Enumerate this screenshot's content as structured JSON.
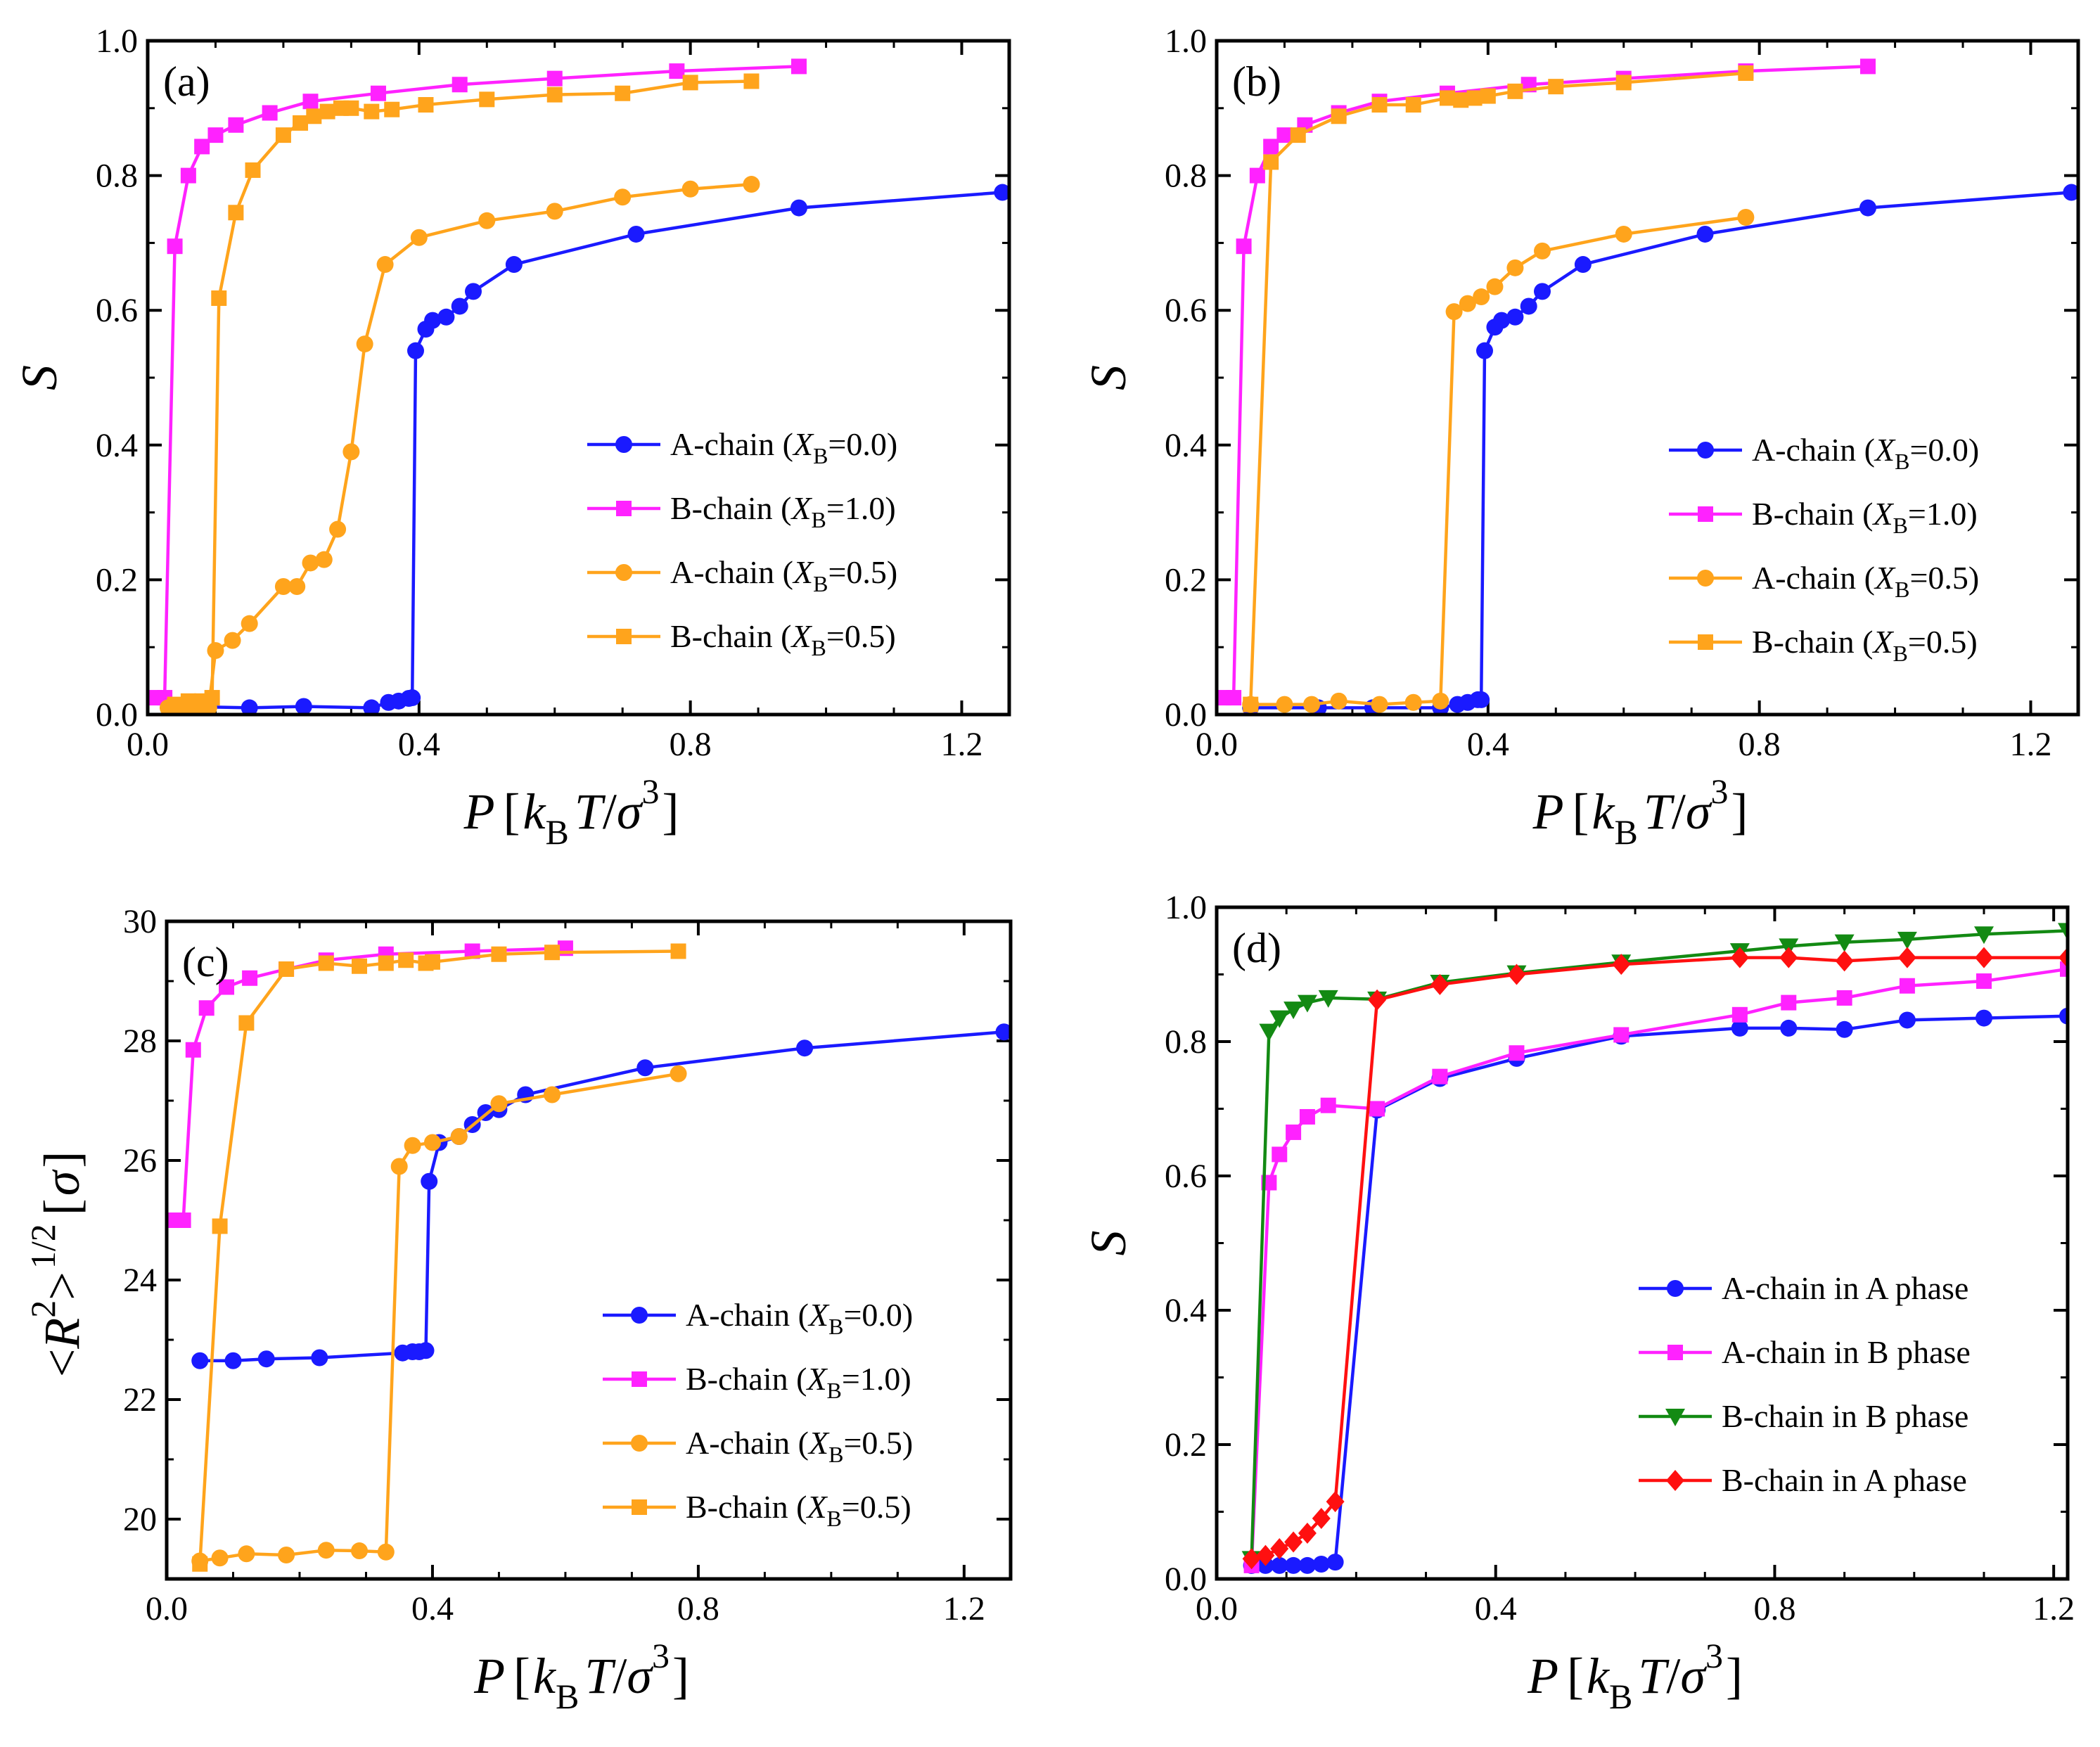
{
  "figure": {
    "legend_colors": {
      "blue": "#1a1aff",
      "magenta": "#ff22ff",
      "orange": "#ffa41c",
      "green": "#138a13",
      "red": "#ff1010"
    }
  },
  "chart_data": [
    {
      "panel": "(a)",
      "type": "line",
      "xlabel": {
        "main": "P",
        "open": "[",
        "k": "k",
        "sub": "B",
        "T": "T",
        "slash": "/",
        "sigma": "σ",
        "sup": "3",
        "close": "]"
      },
      "ylabel": {
        "main": "S"
      },
      "xlim": [
        0.0,
        1.27
      ],
      "ylim": [
        0.0,
        1.0
      ],
      "xticks": [
        "0.0",
        "0.4",
        "0.8",
        "1.2"
      ],
      "xtick_values": [
        0.0,
        0.4,
        0.8,
        1.2
      ],
      "yticks": [
        "0.0",
        "0.2",
        "0.4",
        "0.6",
        "0.8",
        "1.0"
      ],
      "ytick_values": [
        0.0,
        0.2,
        0.4,
        0.6,
        0.8,
        1.0
      ],
      "legend_position": "center-right",
      "series": [
        {
          "name": "A-chain (XB=0.0)",
          "label_pre": "A-chain (",
          "label_var": "X",
          "label_sub": "B",
          "label_post": "=0.0)",
          "color": "#1a1aff",
          "marker": "circle",
          "x": [
            0.05,
            0.15,
            0.23,
            0.33,
            0.355,
            0.37,
            0.385,
            0.39,
            0.395,
            0.41,
            0.42,
            0.44,
            0.46,
            0.48,
            0.54,
            0.72,
            0.96,
            1.26
          ],
          "y": [
            0.012,
            0.01,
            0.012,
            0.01,
            0.018,
            0.02,
            0.024,
            0.025,
            0.54,
            0.572,
            0.585,
            0.59,
            0.606,
            0.628,
            0.668,
            0.713,
            0.752,
            0.775
          ]
        },
        {
          "name": "B-chain (XB=1.0)",
          "label_pre": "B-chain (",
          "label_var": "X",
          "label_sub": "B",
          "label_post": "=1.0)",
          "color": "#ff22ff",
          "marker": "square",
          "x": [
            0.01,
            0.025,
            0.04,
            0.06,
            0.08,
            0.1,
            0.13,
            0.18,
            0.24,
            0.34,
            0.46,
            0.6,
            0.78,
            0.96
          ],
          "y": [
            0.025,
            0.025,
            0.695,
            0.8,
            0.843,
            0.86,
            0.875,
            0.893,
            0.91,
            0.922,
            0.935,
            0.944,
            0.955,
            0.962
          ]
        },
        {
          "name": "A-chain (XB=0.5)",
          "label_pre": "A-chain (",
          "label_var": "X",
          "label_sub": "B",
          "label_post": "=0.5)",
          "color": "#ffa41c",
          "marker": "circle",
          "x": [
            0.03,
            0.05,
            0.07,
            0.09,
            0.1,
            0.125,
            0.15,
            0.2,
            0.22,
            0.24,
            0.26,
            0.28,
            0.3,
            0.32,
            0.35,
            0.4,
            0.5,
            0.6,
            0.7,
            0.8,
            0.89
          ],
          "y": [
            0.01,
            0.01,
            0.005,
            0.01,
            0.095,
            0.11,
            0.135,
            0.19,
            0.19,
            0.225,
            0.23,
            0.275,
            0.39,
            0.55,
            0.668,
            0.708,
            0.733,
            0.747,
            0.768,
            0.78,
            0.787
          ]
        },
        {
          "name": "B-chain (XB=0.5)",
          "label_pre": "B-chain (",
          "label_var": "X",
          "label_sub": "B",
          "label_post": "=0.5)",
          "color": "#ffa41c",
          "marker": "square",
          "x": [
            0.04,
            0.06,
            0.08,
            0.095,
            0.105,
            0.13,
            0.155,
            0.2,
            0.225,
            0.245,
            0.265,
            0.285,
            0.3,
            0.33,
            0.36,
            0.41,
            0.5,
            0.6,
            0.7,
            0.8,
            0.89
          ],
          "y": [
            0.015,
            0.02,
            0.02,
            0.025,
            0.618,
            0.745,
            0.808,
            0.86,
            0.878,
            0.888,
            0.895,
            0.9,
            0.9,
            0.895,
            0.898,
            0.905,
            0.913,
            0.92,
            0.922,
            0.938,
            0.94
          ]
        }
      ]
    },
    {
      "panel": "(b)",
      "type": "line",
      "xlabel": {
        "main": "P",
        "open": "[",
        "k": "k",
        "sub": "B",
        "T": "T",
        "slash": "/",
        "sigma": "σ",
        "sup": "3",
        "close": "]"
      },
      "ylabel": {
        "main": "S"
      },
      "xlim": [
        0.0,
        1.27
      ],
      "ylim": [
        0.0,
        1.0
      ],
      "xticks": [
        "0.0",
        "0.4",
        "0.8",
        "1.2"
      ],
      "xtick_values": [
        0.0,
        0.4,
        0.8,
        1.2
      ],
      "yticks": [
        "0.0",
        "0.2",
        "0.4",
        "0.6",
        "0.8",
        "1.0"
      ],
      "ytick_values": [
        0.0,
        0.2,
        0.4,
        0.6,
        0.8,
        1.0
      ],
      "legend_position": "center-right",
      "series": [
        {
          "name": "A-chain (XB=0.0)",
          "label_pre": "A-chain (",
          "label_var": "X",
          "label_sub": "B",
          "label_post": "=0.0)",
          "color": "#1a1aff",
          "marker": "circle",
          "x": [
            0.05,
            0.15,
            0.23,
            0.33,
            0.355,
            0.37,
            0.385,
            0.39,
            0.395,
            0.41,
            0.42,
            0.44,
            0.46,
            0.48,
            0.54,
            0.72,
            0.96,
            1.26
          ],
          "y": [
            0.01,
            0.01,
            0.01,
            0.01,
            0.015,
            0.018,
            0.022,
            0.022,
            0.54,
            0.575,
            0.585,
            0.59,
            0.606,
            0.628,
            0.668,
            0.713,
            0.752,
            0.775
          ]
        },
        {
          "name": "B-chain (XB=1.0)",
          "label_pre": "B-chain (",
          "label_var": "X",
          "label_sub": "B",
          "label_post": "=1.0)",
          "color": "#ff22ff",
          "marker": "square",
          "x": [
            0.01,
            0.025,
            0.04,
            0.06,
            0.08,
            0.1,
            0.13,
            0.18,
            0.24,
            0.34,
            0.46,
            0.6,
            0.78,
            0.96
          ],
          "y": [
            0.025,
            0.025,
            0.695,
            0.8,
            0.843,
            0.86,
            0.875,
            0.893,
            0.91,
            0.922,
            0.935,
            0.944,
            0.955,
            0.962
          ]
        },
        {
          "name": "A-chain (XB=0.5)",
          "label_pre": "A-chain (",
          "label_var": "X",
          "label_sub": "B",
          "label_post": "=0.5)",
          "color": "#ffa41c",
          "marker": "circle",
          "x": [
            0.05,
            0.1,
            0.14,
            0.18,
            0.24,
            0.29,
            0.33,
            0.35,
            0.37,
            0.39,
            0.41,
            0.44,
            0.48,
            0.6,
            0.78
          ],
          "y": [
            0.015,
            0.015,
            0.015,
            0.02,
            0.015,
            0.018,
            0.02,
            0.598,
            0.61,
            0.62,
            0.635,
            0.663,
            0.688,
            0.713,
            0.738
          ]
        },
        {
          "name": "B-chain (XB=0.5)",
          "label_pre": "B-chain (",
          "label_var": "X",
          "label_sub": "B",
          "label_post": "=0.5)",
          "color": "#ffa41c",
          "marker": "square",
          "x": [
            0.05,
            0.08,
            0.12,
            0.18,
            0.24,
            0.29,
            0.34,
            0.36,
            0.38,
            0.4,
            0.44,
            0.5,
            0.6,
            0.78
          ],
          "y": [
            0.015,
            0.82,
            0.86,
            0.888,
            0.905,
            0.905,
            0.915,
            0.912,
            0.915,
            0.918,
            0.925,
            0.932,
            0.938,
            0.952
          ]
        }
      ]
    },
    {
      "panel": "(c)",
      "type": "line",
      "xlabel": {
        "main": "P",
        "open": "[",
        "k": "k",
        "sub": "B",
        "T": "T",
        "slash": "/",
        "sigma": "σ",
        "sup": "3",
        "close": "]"
      },
      "ylabel": {
        "lt": "<",
        "R": "R",
        "sup2": "2",
        "gt": ">",
        "sup_half": "1/2",
        "open": "[",
        "sigma": "σ",
        "close": "]"
      },
      "xlim": [
        0.0,
        1.27
      ],
      "ylim": [
        19.0,
        30.0
      ],
      "xticks": [
        "0.0",
        "0.4",
        "0.8",
        "1.2"
      ],
      "xtick_values": [
        0.0,
        0.4,
        0.8,
        1.2
      ],
      "yticks": [
        "20",
        "22",
        "24",
        "26",
        "28",
        "30"
      ],
      "ytick_values": [
        20,
        22,
        24,
        26,
        28,
        30
      ],
      "legend_position": "lower-right",
      "series": [
        {
          "name": "A-chain (XB=0.0)",
          "label_pre": "A-chain (",
          "label_var": "X",
          "label_sub": "B",
          "label_post": "=0.0)",
          "color": "#1a1aff",
          "marker": "circle",
          "x": [
            0.05,
            0.1,
            0.15,
            0.23,
            0.355,
            0.37,
            0.38,
            0.39,
            0.395,
            0.41,
            0.44,
            0.46,
            0.48,
            0.5,
            0.54,
            0.72,
            0.96,
            1.26
          ],
          "y": [
            22.65,
            22.65,
            22.68,
            22.7,
            22.78,
            22.8,
            22.8,
            22.82,
            25.65,
            26.3,
            26.4,
            26.6,
            26.8,
            26.85,
            27.1,
            27.55,
            27.88,
            28.15
          ]
        },
        {
          "name": "B-chain (XB=1.0)",
          "label_pre": "B-chain (",
          "label_var": "X",
          "label_sub": "B",
          "label_post": "=1.0)",
          "color": "#ff22ff",
          "marker": "square",
          "x": [
            0.01,
            0.025,
            0.04,
            0.06,
            0.09,
            0.125,
            0.18,
            0.24,
            0.33,
            0.46,
            0.6
          ],
          "y": [
            25.0,
            25.0,
            27.85,
            28.55,
            28.9,
            29.05,
            29.2,
            29.35,
            29.45,
            29.5,
            29.55
          ]
        },
        {
          "name": "A-chain (XB=0.5)",
          "label_pre": "A-chain (",
          "label_var": "X",
          "label_sub": "B",
          "label_post": "=0.5)",
          "color": "#ffa41c",
          "marker": "circle",
          "x": [
            0.05,
            0.08,
            0.12,
            0.18,
            0.24,
            0.29,
            0.33,
            0.35,
            0.37,
            0.4,
            0.44,
            0.5,
            0.58,
            0.77
          ],
          "y": [
            19.3,
            19.35,
            19.42,
            19.4,
            19.48,
            19.47,
            19.45,
            25.9,
            26.25,
            26.3,
            26.4,
            26.95,
            27.1,
            27.45
          ]
        },
        {
          "name": "B-chain (XB=0.5)",
          "label_pre": "B-chain (",
          "label_var": "X",
          "label_sub": "B",
          "label_post": "=0.5)",
          "color": "#ffa41c",
          "marker": "square",
          "x": [
            0.05,
            0.08,
            0.12,
            0.18,
            0.24,
            0.29,
            0.33,
            0.36,
            0.39,
            0.4,
            0.5,
            0.58,
            0.77
          ],
          "y": [
            19.25,
            24.9,
            28.3,
            29.2,
            29.3,
            29.25,
            29.3,
            29.35,
            29.3,
            29.32,
            29.45,
            29.48,
            29.5
          ]
        }
      ]
    },
    {
      "panel": "(d)",
      "type": "line",
      "xlabel": {
        "main": "P",
        "open": "[",
        "k": "k",
        "sub": "B",
        "T": "T",
        "slash": "/",
        "sigma": "σ",
        "sup": "3",
        "close": "]"
      },
      "ylabel": {
        "main": "S"
      },
      "xlim": [
        0.0,
        1.22
      ],
      "ylim": [
        0.0,
        1.0
      ],
      "xticks": [
        "0.0",
        "0.4",
        "0.8",
        "1.2"
      ],
      "xtick_values": [
        0.0,
        0.4,
        0.8,
        1.2
      ],
      "yticks": [
        "0.0",
        "0.2",
        "0.4",
        "0.6",
        "0.8",
        "1.0"
      ],
      "ytick_values": [
        0.0,
        0.2,
        0.4,
        0.6,
        0.8,
        1.0
      ],
      "legend_position": "lower-right",
      "series": [
        {
          "name": "A-chain in A phase",
          "label_pre": "A-chain in A phase",
          "color": "#1a1aff",
          "marker": "circle",
          "x": [
            0.05,
            0.07,
            0.09,
            0.11,
            0.13,
            0.15,
            0.17,
            0.23,
            0.32,
            0.43,
            0.58,
            0.75,
            0.82,
            0.9,
            0.99,
            1.1,
            1.22
          ],
          "y": [
            0.02,
            0.02,
            0.02,
            0.02,
            0.02,
            0.022,
            0.025,
            0.698,
            0.745,
            0.775,
            0.808,
            0.82,
            0.82,
            0.818,
            0.832,
            0.835,
            0.838
          ]
        },
        {
          "name": "A-chain in B phase",
          "label_pre": "A-chain in B phase",
          "color": "#ff22ff",
          "marker": "square",
          "x": [
            0.05,
            0.075,
            0.09,
            0.11,
            0.13,
            0.16,
            0.23,
            0.32,
            0.43,
            0.58,
            0.75,
            0.82,
            0.9,
            0.99,
            1.1,
            1.22
          ],
          "y": [
            0.02,
            0.59,
            0.632,
            0.665,
            0.688,
            0.705,
            0.7,
            0.748,
            0.783,
            0.81,
            0.84,
            0.858,
            0.865,
            0.883,
            0.89,
            0.908
          ]
        },
        {
          "name": "B-chain in B phase",
          "label_pre": "B-chain in B phase",
          "color": "#138a13",
          "marker": "triangle-down",
          "x": [
            0.05,
            0.075,
            0.09,
            0.11,
            0.13,
            0.16,
            0.23,
            0.32,
            0.43,
            0.58,
            0.75,
            0.82,
            0.9,
            0.99,
            1.1,
            1.22
          ],
          "y": [
            0.03,
            0.815,
            0.835,
            0.848,
            0.858,
            0.865,
            0.863,
            0.888,
            0.902,
            0.918,
            0.935,
            0.942,
            0.948,
            0.952,
            0.96,
            0.965
          ]
        },
        {
          "name": "B-chain in A phase",
          "label_pre": "B-chain in A phase",
          "color": "#ff1010",
          "marker": "diamond",
          "x": [
            0.05,
            0.07,
            0.09,
            0.11,
            0.13,
            0.15,
            0.17,
            0.23,
            0.32,
            0.43,
            0.58,
            0.75,
            0.82,
            0.9,
            0.99,
            1.1,
            1.22
          ],
          "y": [
            0.03,
            0.035,
            0.045,
            0.055,
            0.068,
            0.09,
            0.115,
            0.862,
            0.885,
            0.9,
            0.915,
            0.925,
            0.925,
            0.92,
            0.925,
            0.925,
            0.925
          ]
        }
      ]
    }
  ]
}
